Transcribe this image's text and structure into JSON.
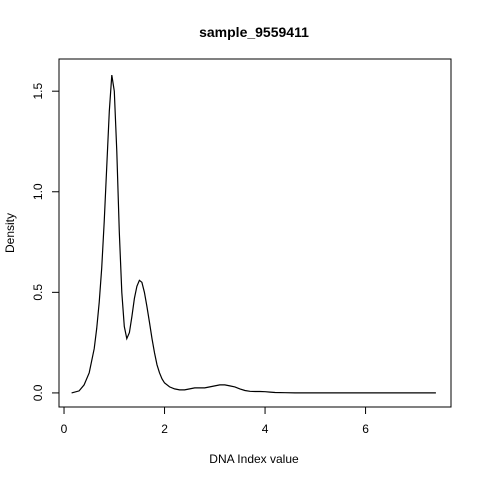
{
  "chart_data": {
    "type": "line",
    "title": "sample_9559411",
    "xlabel": "DNA Index value",
    "ylabel": "Density",
    "xlim": [
      -0.1,
      7.7
    ],
    "ylim": [
      -0.07,
      1.66
    ],
    "x_ticks": [
      0,
      2,
      4,
      6
    ],
    "y_ticks": [
      0.0,
      0.5,
      1.0,
      1.5
    ],
    "x_tick_labels": [
      "0",
      "2",
      "4",
      "6"
    ],
    "y_tick_labels": [
      "0.0",
      "0.5",
      "1.0",
      "1.5"
    ],
    "grid": false,
    "legend": "none",
    "series": [
      {
        "x": [
          0.15,
          0.3,
          0.4,
          0.5,
          0.6,
          0.65,
          0.7,
          0.75,
          0.8,
          0.85,
          0.9,
          0.95,
          1.0,
          1.05,
          1.1,
          1.15,
          1.2,
          1.25,
          1.3,
          1.35,
          1.4,
          1.45,
          1.5,
          1.55,
          1.6,
          1.65,
          1.7,
          1.75,
          1.8,
          1.85,
          1.9,
          1.95,
          2.0,
          2.1,
          2.2,
          2.3,
          2.4,
          2.5,
          2.6,
          2.7,
          2.8,
          2.9,
          3.0,
          3.1,
          3.2,
          3.3,
          3.4,
          3.5,
          3.6,
          3.7,
          3.8,
          3.9,
          4.0,
          4.1,
          4.2,
          4.4,
          4.6,
          5.0,
          5.5,
          6.0,
          6.5,
          7.0,
          7.4
        ],
        "y": [
          0.0,
          0.01,
          0.04,
          0.1,
          0.22,
          0.32,
          0.45,
          0.62,
          0.85,
          1.12,
          1.4,
          1.58,
          1.5,
          1.2,
          0.8,
          0.5,
          0.33,
          0.27,
          0.3,
          0.38,
          0.47,
          0.53,
          0.56,
          0.55,
          0.5,
          0.43,
          0.35,
          0.27,
          0.2,
          0.14,
          0.1,
          0.07,
          0.05,
          0.03,
          0.02,
          0.015,
          0.015,
          0.02,
          0.025,
          0.025,
          0.025,
          0.03,
          0.035,
          0.04,
          0.04,
          0.035,
          0.03,
          0.02,
          0.012,
          0.008,
          0.007,
          0.007,
          0.006,
          0.004,
          0.002,
          0.001,
          0.0,
          0.0,
          0.0,
          0.0,
          0.0,
          0.0,
          0.0
        ]
      }
    ]
  }
}
